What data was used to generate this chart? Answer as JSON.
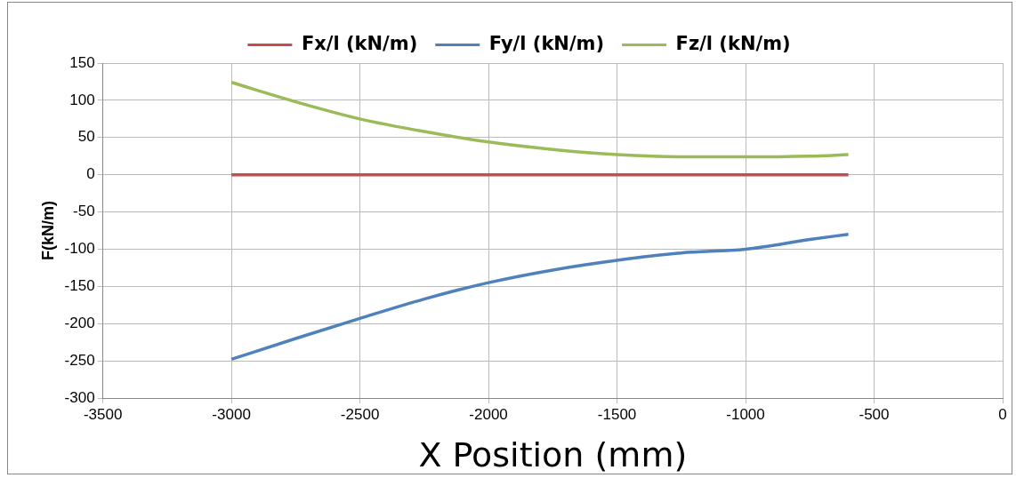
{
  "chart_data": {
    "type": "line",
    "xlabel": "X Position (mm)",
    "ylabel": "F(kN/m)",
    "xlim": [
      -3500,
      0
    ],
    "xticks": [
      -3500,
      -3000,
      -2500,
      -2000,
      -1500,
      -1000,
      -500,
      0
    ],
    "ylim": [
      -300,
      150
    ],
    "yticks": [
      -300,
      -250,
      -200,
      -150,
      -100,
      -50,
      0,
      50,
      100,
      150
    ],
    "grid": true,
    "legend": "top",
    "marker": "none",
    "line_style": "solid",
    "x": [
      -3000,
      -2750,
      -2500,
      -2250,
      -2000,
      -1750,
      -1500,
      -1250,
      -1000,
      -750,
      -600
    ],
    "series": [
      {
        "name": "Fx/l (kN/m)",
        "color": "#c0504d",
        "values": [
          0,
          0,
          0,
          0,
          0,
          0,
          0,
          0,
          0,
          0,
          0
        ]
      },
      {
        "name": "Fy/l (kN/m)",
        "color": "#4f81bd",
        "values": [
          -248,
          -220,
          -193,
          -167,
          -145,
          -128,
          -115,
          -105,
          -100,
          -87,
          -80
        ]
      },
      {
        "name": "Fz/l (kN/m)",
        "color": "#9bbb59",
        "values": [
          124,
          98,
          75,
          58,
          44,
          34,
          27,
          24,
          24,
          25,
          27
        ]
      }
    ]
  }
}
